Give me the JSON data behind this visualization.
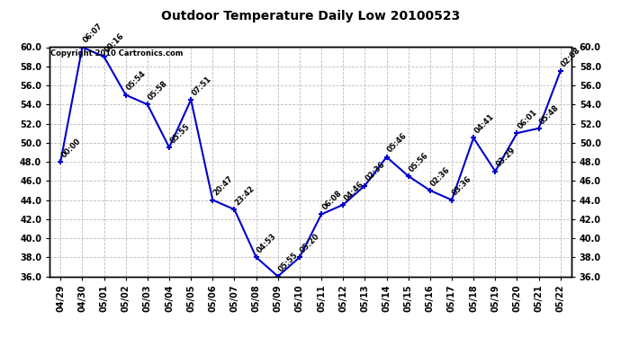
{
  "title": "Outdoor Temperature Daily Low 20100523",
  "copyright": "Copyright 2010 Cartronics.com",
  "background_color": "#ffffff",
  "line_color": "#0000cc",
  "grid_color": "#bbbbbb",
  "text_color": "#000000",
  "ylim": [
    36.0,
    60.0
  ],
  "yticks": [
    36.0,
    38.0,
    40.0,
    42.0,
    44.0,
    46.0,
    48.0,
    50.0,
    52.0,
    54.0,
    56.0,
    58.0,
    60.0
  ],
  "dates": [
    "04/29",
    "04/30",
    "05/01",
    "05/02",
    "05/03",
    "05/04",
    "05/05",
    "05/06",
    "05/07",
    "05/08",
    "05/09",
    "05/10",
    "05/11",
    "05/12",
    "05/13",
    "05/14",
    "05/15",
    "05/16",
    "05/17",
    "05/18",
    "05/19",
    "05/20",
    "05/21",
    "05/22"
  ],
  "values": [
    48.0,
    60.0,
    59.0,
    55.0,
    54.0,
    49.5,
    54.5,
    44.0,
    43.0,
    38.0,
    36.0,
    38.0,
    42.5,
    43.5,
    45.5,
    48.5,
    46.5,
    45.0,
    44.0,
    50.5,
    47.0,
    51.0,
    51.5,
    57.5
  ],
  "labels": [
    "00:00",
    "06:07",
    "00:16",
    "05:54",
    "05:58",
    "05:55",
    "07:51",
    "20:47",
    "23:42",
    "04:53",
    "05:55",
    "05:20",
    "06:08",
    "04:46",
    "02:36",
    "05:46",
    "05:56",
    "02:36",
    "03:36",
    "04:41",
    "03:29",
    "06:01",
    "05:48",
    "02:08"
  ]
}
